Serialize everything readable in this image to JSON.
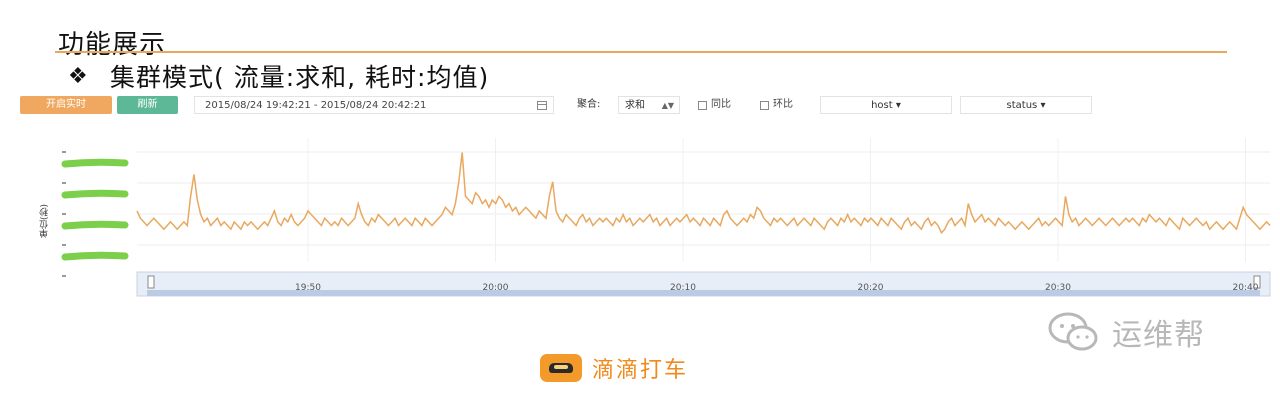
{
  "slide": {
    "title": "功能展示",
    "bullet_icon": "diamond-bullet-icon",
    "bullet_text": "集群模式( 流量:求和, 耗时:均值)"
  },
  "toolbar": {
    "live_button_label": "开启实时",
    "refresh_button_label": "刷新",
    "date_range": "2015/08/24 19:42:21 - 2015/08/24 20:42:21",
    "calendar_icon": "calendar-icon",
    "aggregate_label": "聚合:",
    "aggregate_value": "求和",
    "yoy_label": "同比",
    "mom_label": "环比",
    "host_dropdown": "host ▾",
    "status_dropdown": "status ▾"
  },
  "colors": {
    "accent_orange": "#f0a860",
    "refresh_green": "#5cb896",
    "series_line": "#e9a85e",
    "highlight_green": "#7ccf4a"
  },
  "chart_data": {
    "type": "line",
    "ylabel": "单位(秒)",
    "x_ticks": [
      "19:50",
      "20:00",
      "20:10",
      "20:20",
      "20:30",
      "20:40"
    ],
    "series": [
      {
        "values": [
          14,
          12,
          11,
          10,
          11,
          12,
          11,
          10,
          9,
          10,
          11,
          10,
          9,
          10,
          11,
          10,
          18,
          24,
          17,
          13,
          11,
          12,
          10,
          11,
          12,
          10,
          11,
          10,
          9,
          11,
          10,
          9,
          11,
          10,
          11,
          10,
          9,
          10,
          11,
          10,
          12,
          14,
          11,
          10,
          12,
          11,
          13,
          11,
          10,
          11,
          12,
          14,
          13,
          12,
          11,
          10,
          12,
          11,
          10,
          11,
          10,
          12,
          11,
          10,
          11,
          12,
          16,
          13,
          11,
          10,
          12,
          11,
          13,
          12,
          11,
          10,
          11,
          12,
          10,
          11,
          12,
          11,
          10,
          12,
          11,
          10,
          12,
          11,
          10,
          11,
          12,
          13,
          15,
          14,
          13,
          16,
          22,
          30,
          18,
          17,
          16,
          19,
          18,
          16,
          17,
          15,
          17,
          16,
          18,
          17,
          15,
          16,
          14,
          15,
          13,
          14,
          15,
          14,
          13,
          12,
          14,
          13,
          12,
          18,
          22,
          14,
          12,
          11,
          13,
          12,
          11,
          10,
          12,
          13,
          11,
          12,
          10,
          11,
          12,
          11,
          12,
          11,
          10,
          12,
          11,
          13,
          11,
          12,
          10,
          11,
          12,
          11,
          12,
          13,
          11,
          12,
          10,
          11,
          12,
          10,
          11,
          12,
          11,
          12,
          13,
          11,
          12,
          11,
          10,
          12,
          11,
          10,
          12,
          11,
          10,
          13,
          14,
          12,
          11,
          10,
          11,
          12,
          11,
          13,
          12,
          15,
          14,
          12,
          11,
          10,
          12,
          11,
          12,
          11,
          10,
          11,
          12,
          10,
          11,
          12,
          11,
          10,
          12,
          11,
          10,
          9,
          11,
          12,
          11,
          10,
          12,
          11,
          13,
          11,
          12,
          11,
          10,
          12,
          11,
          12,
          11,
          10,
          12,
          11,
          10,
          12,
          11,
          10,
          9,
          11,
          12,
          10,
          11,
          10,
          9,
          11,
          12,
          10,
          11,
          10,
          8,
          9,
          11,
          12,
          10,
          11,
          12,
          10,
          16,
          13,
          11,
          12,
          13,
          11,
          12,
          11,
          10,
          12,
          11,
          10,
          11,
          10,
          9,
          10,
          11,
          10,
          9,
          10,
          11,
          12,
          10,
          11,
          10,
          11,
          12,
          11,
          10,
          18,
          13,
          11,
          12,
          10,
          11,
          12,
          11,
          10,
          11,
          12,
          11,
          10,
          11,
          12,
          11,
          10,
          11,
          12,
          11,
          12,
          11,
          10,
          12,
          11,
          13,
          12,
          11,
          12,
          11,
          10,
          12,
          11,
          10,
          9,
          12,
          11,
          10,
          11,
          12,
          11,
          10,
          11,
          9,
          10,
          11,
          10,
          9,
          10,
          11,
          10,
          9,
          12,
          15,
          13,
          12,
          11,
          10,
          9,
          10,
          11,
          10
        ]
      }
    ]
  },
  "footer": {
    "logo_icon": "didi-car-logo-icon",
    "logo_text": "滴滴打车",
    "watermark_icon": "wechat-icon",
    "watermark_text": "运维帮"
  }
}
